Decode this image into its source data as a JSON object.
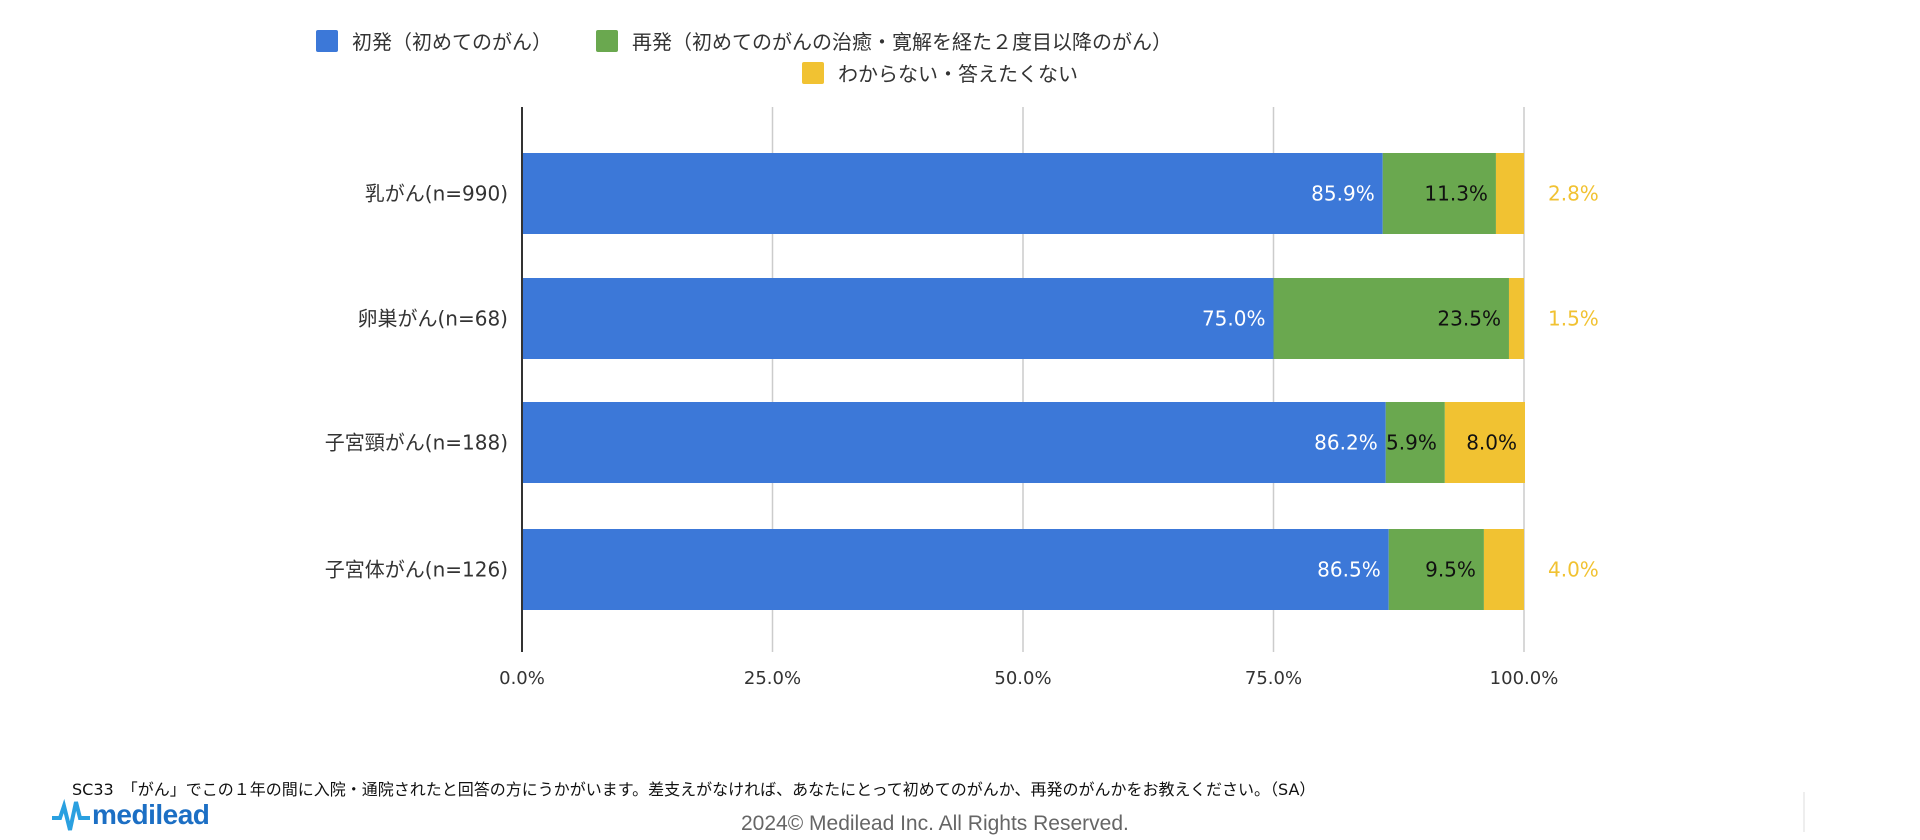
{
  "chart_data": {
    "type": "bar",
    "orientation": "horizontal",
    "stacked": true,
    "categories": [
      "乳がん(n=990)",
      "卵巣がん(n=68)",
      "子宮頸がん(n=188)",
      "子宮体がん(n=126)"
    ],
    "series": [
      {
        "name": "初発（初めてのがん）",
        "color": "#3c78d8",
        "values": [
          85.9,
          75.0,
          86.2,
          86.5
        ],
        "labels": [
          "85.9%",
          "75.0%",
          "86.2%",
          "86.5%"
        ],
        "label_color": "#ffffff"
      },
      {
        "name": "再発（初めてのがんの治癒・寛解を経た２度目以降のがん）",
        "color": "#6aa84f",
        "values": [
          11.3,
          23.5,
          5.9,
          9.5
        ],
        "labels": [
          "11.3%",
          "23.5%",
          "5.9%",
          "9.5%"
        ],
        "label_color": "#111111"
      },
      {
        "name": "わからない・答えたくない",
        "color": "#f1c232",
        "values": [
          2.8,
          1.5,
          8.0,
          4.0
        ],
        "labels": [
          "2.8%",
          "1.5%",
          "8.0%",
          "4.0%"
        ],
        "label_color": "#f1c232"
      }
    ],
    "xlim": [
      0,
      100
    ],
    "xticks": [
      "0.0%",
      "25.0%",
      "50.0%",
      "75.0%",
      "100.0%"
    ],
    "grid": true,
    "legend": "top-center"
  },
  "footnote": "SC33　「がん」でこの１年の間に入院・通院されたと回答の方にうかがいます。差支えがなければ、あなたにとって初めてのがんか、再発のがんかをお教えください。（SA）",
  "logo": "medilead",
  "copyright": "2024© Medilead Inc. All Rights Reserved."
}
